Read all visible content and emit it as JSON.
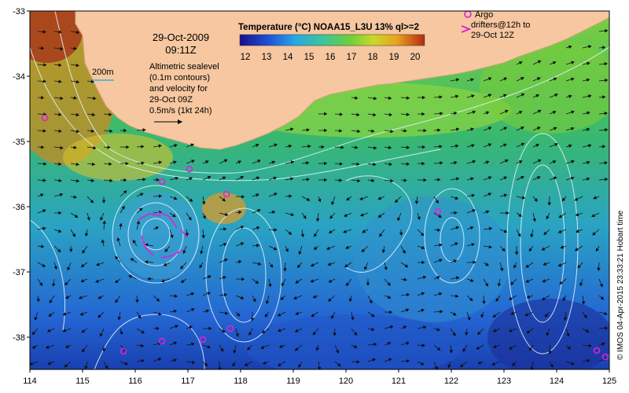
{
  "map": {
    "date": "29-Oct-2009",
    "time": "09:11Z",
    "scale_label": "200m",
    "altimetry_lines": [
      "Altimetric sealevel",
      "(0.1m contours)",
      "and velocity for",
      "29-Oct 09Z",
      "0.5m/s (1kt 24h)"
    ],
    "colorbar": {
      "title": "Temperature (°C) NOAA15_L3U 13% ql>=2",
      "ticks": [
        "12",
        "13",
        "14",
        "15",
        "16",
        "17",
        "18",
        "19",
        "20"
      ]
    },
    "legend": {
      "argo_label": "Argo",
      "drifters_line1": "drifters@12h to",
      "drifters_line2": "29-Oct 12Z"
    },
    "x_ticks": [
      "114",
      "115",
      "116",
      "117",
      "118",
      "119",
      "120",
      "121",
      "122",
      "123",
      "124",
      "125"
    ],
    "y_ticks": [
      "-33",
      "-34",
      "-35",
      "-36",
      "-37",
      "-38"
    ],
    "credit": "© IMOS 04-Apr-2015 23:33:21 Hobart time"
  }
}
